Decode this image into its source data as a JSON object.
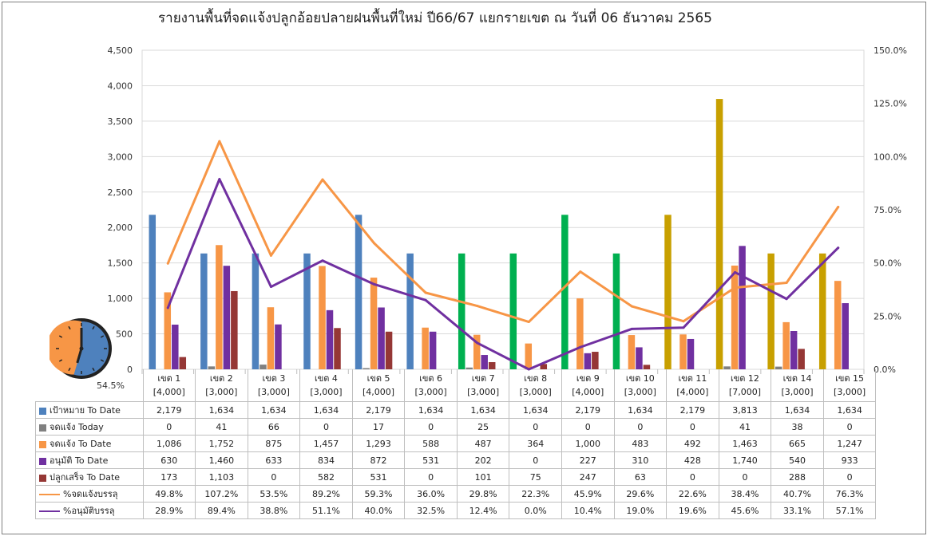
{
  "chart_data": {
    "type": "bar",
    "title": "รายงานพื้นที่จดแจ้งปลูกอ้อยปลายฝนพื้นที่ใหม่ ปี66/67 แยกรายเขต  ณ วันที่ 06 ธันวาคม 2565",
    "categories": [
      "เขต 1",
      "เขต 2",
      "เขต 3",
      "เขต 4",
      "เขต 5",
      "เขต 6",
      "เขต 7",
      "เขต 8",
      "เขต 9",
      "เขต 10",
      "เขต 11",
      "เขต 12",
      "เขต 14",
      "เขต 15"
    ],
    "category_targets": [
      "[4,000]",
      "[3,000]",
      "[3,000]",
      "[3,000]",
      "[4,000]",
      "[3,000]",
      "[3,000]",
      "[3,000]",
      "[4,000]",
      "[3,000]",
      "[4,000]",
      "[7,000]",
      "[3,000]",
      "[3,000]"
    ],
    "ylim": [
      0,
      4500
    ],
    "y_ticks": [
      "0",
      "500",
      "1,000",
      "1,500",
      "2,000",
      "2,500",
      "3,000",
      "3,500",
      "4,000",
      "4,500"
    ],
    "y2lim": [
      0,
      150
    ],
    "y2_ticks": [
      "0.0%",
      "25.0%",
      "50.0%",
      "75.0%",
      "100.0%",
      "125.0%",
      "150.0%"
    ],
    "grid": true,
    "legend_position": "table-left",
    "series": [
      {
        "name": "เป้าหมาย To Date",
        "kind": "bar",
        "axis": "left",
        "color": "#4e81bd",
        "point_colors": [
          "#4e81bd",
          "#4e81bd",
          "#4e81bd",
          "#4e81bd",
          "#4e81bd",
          "#4e81bd",
          "#00b050",
          "#00b050",
          "#00b050",
          "#00b050",
          "#c8a000",
          "#c8a000",
          "#c8a000",
          "#c8a000"
        ],
        "values": [
          2179,
          1634,
          1634,
          1634,
          2179,
          1634,
          1634,
          1634,
          2179,
          1634,
          2179,
          3813,
          1634,
          1634
        ],
        "labels": [
          "2,179",
          "1,634",
          "1,634",
          "1,634",
          "2,179",
          "1,634",
          "1,634",
          "1,634",
          "2,179",
          "1,634",
          "2,179",
          "3,813",
          "1,634",
          "1,634"
        ]
      },
      {
        "name": "จดแจ้ง Today",
        "kind": "bar",
        "axis": "left",
        "color": "#808080",
        "values": [
          0,
          41,
          66,
          0,
          17,
          0,
          25,
          0,
          0,
          0,
          0,
          41,
          38,
          0
        ],
        "labels": [
          "0",
          "41",
          "66",
          "0",
          "17",
          "0",
          "25",
          "0",
          "0",
          "0",
          "0",
          "41",
          "38",
          "0"
        ]
      },
      {
        "name": "จดแจ้ง To Date",
        "kind": "bar",
        "axis": "left",
        "color": "#f79646",
        "values": [
          1086,
          1752,
          875,
          1457,
          1293,
          588,
          487,
          364,
          1000,
          483,
          492,
          1463,
          665,
          1247
        ],
        "labels": [
          "1,086",
          "1,752",
          "875",
          "1,457",
          "1,293",
          "588",
          "487",
          "364",
          "1,000",
          "483",
          "492",
          "1,463",
          "665",
          "1,247"
        ]
      },
      {
        "name": "อนุมัติ To Date",
        "kind": "bar",
        "axis": "left",
        "color": "#7030a0",
        "values": [
          630,
          1460,
          633,
          834,
          872,
          531,
          202,
          0,
          227,
          310,
          428,
          1740,
          540,
          933
        ],
        "labels": [
          "630",
          "1,460",
          "633",
          "834",
          "872",
          "531",
          "202",
          "0",
          "227",
          "310",
          "428",
          "1,740",
          "540",
          "933"
        ]
      },
      {
        "name": "ปลูกเสร็จ To Date",
        "kind": "bar",
        "axis": "left",
        "color": "#953735",
        "values": [
          173,
          1103,
          0,
          582,
          531,
          0,
          101,
          75,
          247,
          63,
          0,
          0,
          288,
          0
        ],
        "labels": [
          "173",
          "1,103",
          "0",
          "582",
          "531",
          "0",
          "101",
          "75",
          "247",
          "63",
          "0",
          "0",
          "288",
          "0"
        ]
      },
      {
        "name": "%จดแจ้งบรรลุ",
        "kind": "line",
        "axis": "right",
        "color": "#f79646",
        "values": [
          49.8,
          107.2,
          53.5,
          89.2,
          59.3,
          36.0,
          29.8,
          22.3,
          45.9,
          29.6,
          22.6,
          38.4,
          40.7,
          76.3
        ],
        "labels": [
          "49.8%",
          "107.2%",
          "53.5%",
          "89.2%",
          "59.3%",
          "36.0%",
          "29.8%",
          "22.3%",
          "45.9%",
          "29.6%",
          "22.6%",
          "38.4%",
          "40.7%",
          "76.3%"
        ]
      },
      {
        "name": "%อนุมัติบรรลุ",
        "kind": "line",
        "axis": "right",
        "color": "#7030a0",
        "values": [
          28.9,
          89.4,
          38.8,
          51.1,
          40.0,
          32.5,
          12.4,
          0.0,
          10.4,
          19.0,
          19.6,
          45.6,
          33.1,
          57.1
        ],
        "labels": [
          "28.9%",
          "89.4%",
          "38.8%",
          "51.1%",
          "40.0%",
          "32.5%",
          "12.4%",
          "0.0%",
          "10.4%",
          "19.0%",
          "19.6%",
          "45.6%",
          "33.1%",
          "57.1%"
        ]
      }
    ]
  },
  "clock": {
    "icon": "clock-icon",
    "fraction": 0.545,
    "label": "54.5%",
    "face_color": "#4e81bd",
    "elapsed_color": "#f79646",
    "rim_color": "#222222"
  }
}
